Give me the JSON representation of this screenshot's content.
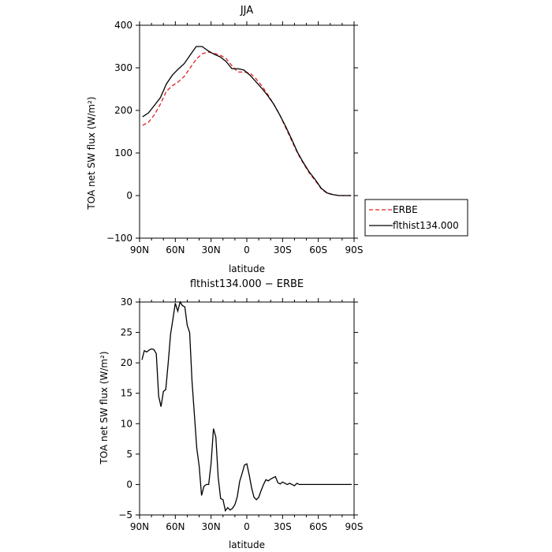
{
  "chart_data": [
    {
      "type": "line",
      "title": "JJA",
      "xlabel": "latitude",
      "ylabel": "TOA net SW flux (W/m²)",
      "xlim": [
        90,
        -90
      ],
      "ylim": [
        -100,
        400
      ],
      "x_ticks": [
        90,
        60,
        30,
        0,
        -30,
        -60,
        -90
      ],
      "x_tick_labels": [
        "90N",
        "60N",
        "30N",
        "0",
        "30S",
        "60S",
        "90S"
      ],
      "y_ticks": [
        -100,
        0,
        100,
        200,
        300,
        400
      ],
      "y_tick_labels": [
        "−100",
        "0",
        "100",
        "200",
        "300",
        "400"
      ],
      "legend_position": "right",
      "series": [
        {
          "name": "ERBE",
          "color": "#e02020",
          "dash": "dashed",
          "x": [
            87.5,
            82.5,
            77.5,
            72.5,
            67.5,
            62.5,
            57.5,
            52.5,
            47.5,
            42.5,
            37.5,
            32.5,
            27.5,
            22.5,
            17.5,
            12.5,
            7.5,
            2.5,
            -2.5,
            -7.5,
            -12.5,
            -17.5,
            -22.5,
            -27.5,
            -32.5,
            -37.5,
            -42.5,
            -47.5,
            -52.5,
            -57.5,
            -62.5,
            -67.5,
            -72.5,
            -77.5,
            -82.5,
            -87.5
          ],
          "y": [
            165,
            172,
            190,
            215,
            245,
            258,
            267,
            280,
            300,
            320,
            333,
            337,
            334,
            330,
            322,
            305,
            290,
            290,
            288,
            275,
            258,
            238,
            215,
            190,
            160,
            130,
            100,
            75,
            53,
            35,
            16,
            5,
            2,
            0,
            0,
            0
          ]
        },
        {
          "name": "flthist134.000",
          "color": "#000000",
          "dash": "solid",
          "x": [
            87.5,
            82.5,
            77.5,
            72.5,
            67.5,
            62.5,
            57.5,
            52.5,
            47.5,
            42.5,
            37.5,
            32.5,
            27.5,
            22.5,
            17.5,
            12.5,
            7.5,
            2.5,
            -2.5,
            -7.5,
            -12.5,
            -17.5,
            -22.5,
            -27.5,
            -32.5,
            -37.5,
            -42.5,
            -47.5,
            -52.5,
            -57.5,
            -62.5,
            -67.5,
            -72.5,
            -77.5,
            -82.5,
            -87.5
          ],
          "y": [
            185,
            194,
            212,
            230,
            262,
            283,
            297,
            310,
            330,
            350,
            350,
            340,
            332,
            326,
            315,
            298,
            298,
            295,
            283,
            268,
            252,
            235,
            215,
            190,
            163,
            133,
            102,
            77,
            55,
            37,
            17,
            6,
            2,
            0,
            0,
            0
          ]
        }
      ]
    },
    {
      "type": "line",
      "title": "flthist134.000 − ERBE",
      "xlabel": "latitude",
      "ylabel": "TOA net SW flux (W/m²)",
      "xlim": [
        90,
        -90
      ],
      "ylim": [
        -5,
        30
      ],
      "x_ticks": [
        90,
        60,
        30,
        0,
        -30,
        -60,
        -90
      ],
      "x_tick_labels": [
        "90N",
        "60N",
        "30N",
        "0",
        "30S",
        "60S",
        "90S"
      ],
      "y_ticks": [
        -5,
        0,
        5,
        10,
        15,
        20,
        25,
        30
      ],
      "y_tick_labels": [
        "−5",
        "0",
        "5",
        "10",
        "15",
        "20",
        "25",
        "30"
      ],
      "series": [
        {
          "color": "#000000",
          "dash": "solid",
          "x": [
            88,
            86,
            84,
            82,
            80,
            78,
            76,
            74,
            72,
            70,
            68,
            66,
            64,
            62,
            60,
            58,
            56,
            54,
            52,
            50,
            48,
            46,
            44,
            42,
            40,
            38,
            36,
            34,
            32,
            30,
            28,
            26,
            24,
            22,
            20,
            18,
            16,
            14,
            12,
            10,
            8,
            6,
            4,
            2,
            0,
            -2,
            -4,
            -6,
            -8,
            -10,
            -12,
            -14,
            -16,
            -18,
            -20,
            -22,
            -24,
            -26,
            -28,
            -30,
            -32,
            -34,
            -36,
            -38,
            -40,
            -42,
            -44,
            -46,
            -48,
            -50,
            -52,
            -54,
            -56,
            -58,
            -60,
            -62,
            -64,
            -66,
            -68,
            -70,
            -72,
            -74,
            -76,
            -78,
            -80,
            -82,
            -84,
            -86,
            -88
          ],
          "y": [
            20.5,
            22,
            21.8,
            22.1,
            22.3,
            22.2,
            21.5,
            14.5,
            12.8,
            15.3,
            15.6,
            20,
            24.7,
            27.2,
            29.8,
            28.5,
            30,
            29.4,
            29.2,
            26.2,
            25,
            17,
            11.5,
            6,
            3,
            -1.8,
            -0.3,
            0,
            0,
            3.5,
            9.2,
            7.8,
            1.2,
            -2.3,
            -2.5,
            -4.3,
            -3.8,
            -4.2,
            -3.9,
            -3.3,
            -2,
            0.5,
            1.8,
            3.2,
            3.4,
            1.6,
            -0.5,
            -2.1,
            -2.5,
            -2.1,
            -1,
            0,
            0.8,
            0.6,
            0.9,
            1.1,
            1.3,
            0.3,
            0.1,
            0.4,
            0.2,
            0,
            0.2,
            0,
            -0.2,
            0.2,
            0,
            0,
            0,
            0,
            0,
            0,
            0,
            0,
            0,
            0,
            0,
            0,
            0,
            0,
            0,
            0,
            0,
            0,
            0,
            0,
            0,
            0,
            0
          ]
        }
      ]
    }
  ]
}
